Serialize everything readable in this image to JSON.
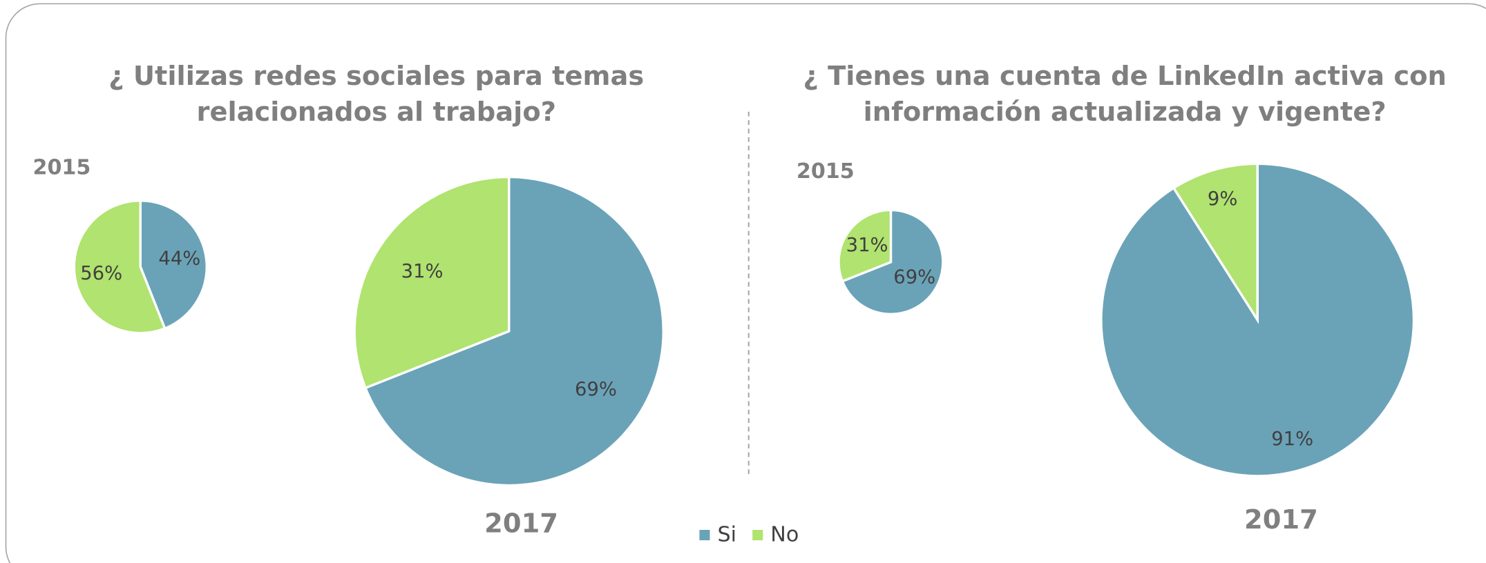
{
  "headings": [
    [
      "¿ Utilizas redes sociales para temas",
      "relacionados al trabajo?"
    ],
    [
      "¿ Tienes una cuenta de LinkedIn activa con",
      "información actualizada y vigente?"
    ]
  ],
  "chart_data": [
    {
      "type": "pie",
      "title": "2015",
      "categories": [
        "Si",
        "No"
      ],
      "values": [
        44,
        56
      ],
      "value_labels": [
        "44%",
        "56%"
      ],
      "colors": [
        "#6aa3b8",
        "#b0e36f"
      ]
    },
    {
      "type": "pie",
      "title": "2017",
      "categories": [
        "Si",
        "No"
      ],
      "values": [
        69,
        31
      ],
      "value_labels": [
        "69%",
        "31%"
      ],
      "colors": [
        "#6aa3b8",
        "#b0e36f"
      ]
    },
    {
      "type": "pie",
      "title": "2015",
      "categories": [
        "Si",
        "No"
      ],
      "values": [
        69,
        31
      ],
      "value_labels": [
        "69%",
        "31%"
      ],
      "colors": [
        "#6aa3b8",
        "#b0e36f"
      ]
    },
    {
      "type": "pie",
      "title": "2017",
      "categories": [
        "Si",
        "No"
      ],
      "values": [
        91,
        9
      ],
      "value_labels": [
        "91%",
        "9%"
      ],
      "colors": [
        "#6aa3b8",
        "#b0e36f"
      ]
    }
  ]
}
